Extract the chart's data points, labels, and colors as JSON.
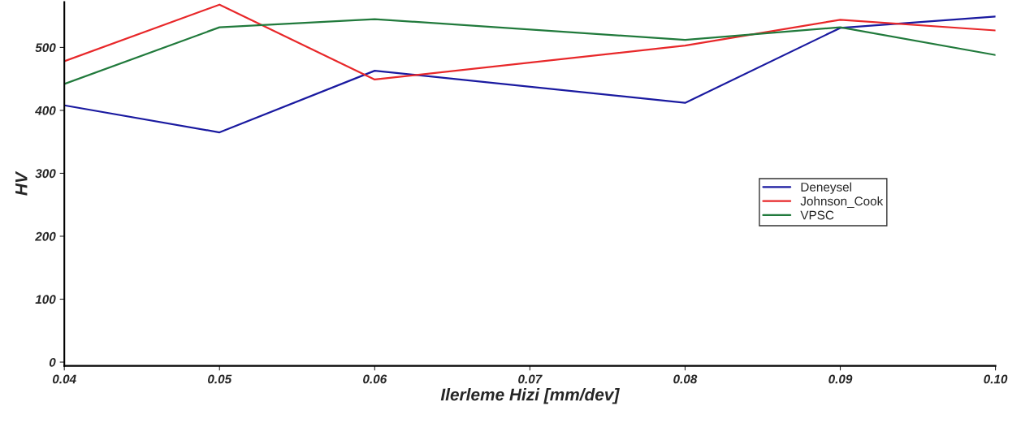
{
  "chart_data": {
    "type": "line",
    "xlabel": "Ilerleme Hizi [mm/dev]",
    "ylabel": "HV",
    "x": [
      0.04,
      0.05,
      0.06,
      0.08,
      0.09,
      0.1
    ],
    "series": [
      {
        "name": "Deneysel",
        "color": "#1a1aa0",
        "values": [
          408,
          365,
          463,
          412,
          531,
          549
        ]
      },
      {
        "name": "Johnson_Cook",
        "color": "#e8282a",
        "values": [
          478,
          568,
          449,
          503,
          544,
          527
        ]
      },
      {
        "name": "VPSC",
        "color": "#217a3c",
        "values": [
          442,
          532,
          545,
          512,
          532,
          488
        ]
      }
    ],
    "xlim": [
      0.04,
      0.1
    ],
    "xticks": [
      {
        "value": 0.04,
        "label": "0.04"
      },
      {
        "value": 0.05,
        "label": "0.05"
      },
      {
        "value": 0.06,
        "label": "0.06"
      },
      {
        "value": 0.07,
        "label": "0.07"
      },
      {
        "value": 0.08,
        "label": "0.08"
      },
      {
        "value": 0.09,
        "label": "0.09"
      },
      {
        "value": 0.1,
        "label": "0.10"
      }
    ],
    "ylim": [
      -6,
      572
    ],
    "yticks": [
      0,
      100,
      200,
      300,
      400,
      500
    ],
    "grid": false,
    "legend": "right",
    "marker": "none",
    "line_style": "solid"
  }
}
